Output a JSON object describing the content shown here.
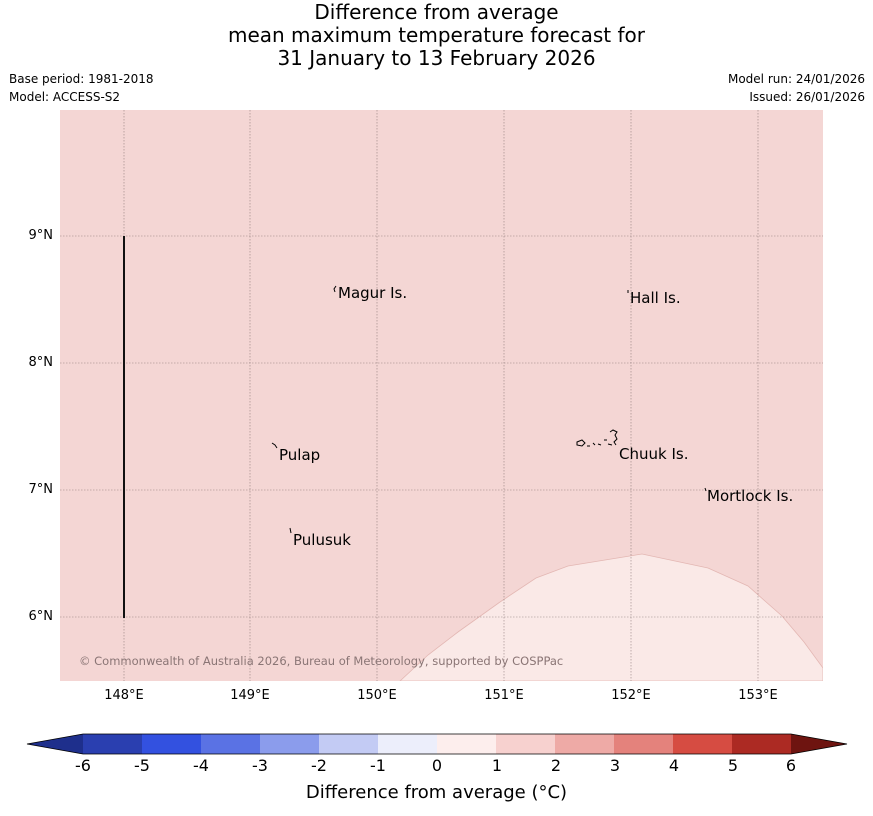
{
  "title": {
    "line1": "Difference from average",
    "line2": "mean maximum temperature forecast for",
    "line3": "31 January to 13 February 2026"
  },
  "meta": {
    "base_period": "Base period: 1981-2018",
    "model": "Model: ACCESS-S2",
    "model_run": "Model run: 24/01/2026",
    "issued": "Issued: 26/01/2026"
  },
  "map": {
    "background_color": "#f4d6d4",
    "lower_region_color": "#fae9e7",
    "copyright": "© Commonwealth of Australia 2026, Bureau of Meteorology, supported by COSPPac",
    "x_ticks": [
      "148°E",
      "149°E",
      "150°E",
      "151°E",
      "152°E",
      "153°E"
    ],
    "y_ticks": [
      "9°N",
      "8°N",
      "7°N",
      "6°N"
    ],
    "places": [
      {
        "name": "Magur Is."
      },
      {
        "name": "Hall Is."
      },
      {
        "name": "Pulap"
      },
      {
        "name": "Chuuk Is."
      },
      {
        "name": "Mortlock Is."
      },
      {
        "name": "Pulusuk"
      }
    ]
  },
  "colorbar": {
    "title": "Difference from average (°C)",
    "labels": [
      "-6",
      "-5",
      "-4",
      "-3",
      "-2",
      "-1",
      "0",
      "1",
      "2",
      "3",
      "4",
      "5",
      "6"
    ],
    "colors": [
      "#1e2f8c",
      "#2a3fb0",
      "#3351e0",
      "#5a72e4",
      "#8b9cec",
      "#c3cbf4",
      "#eceefb",
      "#fdeeed",
      "#f7d1cf",
      "#eeaaa6",
      "#e4827c",
      "#d64c42",
      "#ac2a23",
      "#6e1410"
    ]
  }
}
